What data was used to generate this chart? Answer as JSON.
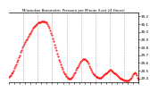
{
  "title": "Milwaukee Barometric Pressure per Minute (Last 24 Hours)",
  "background_color": "#ffffff",
  "plot_color": "#ff0000",
  "grid_color": "#aaaaaa",
  "y_min": 29.35,
  "y_max": 30.25,
  "y_ticks": [
    29.4,
    29.5,
    29.6,
    29.7,
    29.8,
    29.9,
    30.0,
    30.1,
    30.2
  ],
  "y_tick_labels": [
    "29.4",
    "29.5",
    "29.6",
    "29.7",
    "29.8",
    "29.9",
    "30.0",
    "30.1",
    "30.2"
  ],
  "pressure_data": [
    29.42,
    29.43,
    29.44,
    29.46,
    29.48,
    29.5,
    29.53,
    29.56,
    29.58,
    29.61,
    29.64,
    29.67,
    29.7,
    29.74,
    29.77,
    29.8,
    29.82,
    29.85,
    29.87,
    29.89,
    29.91,
    29.93,
    29.95,
    29.97,
    29.99,
    30.01,
    30.03,
    30.05,
    30.07,
    30.08,
    30.09,
    30.1,
    30.11,
    30.12,
    30.13,
    30.13,
    30.14,
    30.14,
    30.14,
    30.14,
    30.14,
    30.13,
    30.12,
    30.1,
    30.08,
    30.05,
    30.02,
    29.99,
    29.96,
    29.92,
    29.88,
    29.84,
    29.8,
    29.76,
    29.72,
    29.68,
    29.64,
    29.61,
    29.58,
    29.55,
    29.52,
    29.49,
    29.47,
    29.45,
    29.43,
    29.42,
    29.41,
    29.4,
    29.4,
    29.4,
    29.41,
    29.42,
    29.44,
    29.46,
    29.48,
    29.51,
    29.53,
    29.55,
    29.57,
    29.59,
    29.61,
    29.63,
    29.64,
    29.65,
    29.65,
    29.65,
    29.64,
    29.63,
    29.61,
    29.59,
    29.56,
    29.54,
    29.51,
    29.49,
    29.47,
    29.45,
    29.44,
    29.43,
    29.42,
    29.42,
    29.41,
    29.41,
    29.41,
    29.41,
    29.42,
    29.43,
    29.44,
    29.45,
    29.46,
    29.47,
    29.48,
    29.49,
    29.5,
    29.51,
    29.51,
    29.5,
    29.49,
    29.48,
    29.47,
    29.46,
    29.45,
    29.44,
    29.43,
    29.42,
    29.41,
    29.4,
    29.39,
    29.38,
    29.38,
    29.37,
    29.37,
    29.37,
    29.37,
    29.37,
    29.37,
    29.38,
    29.39,
    29.41,
    29.43,
    29.45,
    29.47,
    29.48,
    29.46,
    29.44,
    29.41,
    29.38
  ],
  "n_vert_gridlines": 9
}
